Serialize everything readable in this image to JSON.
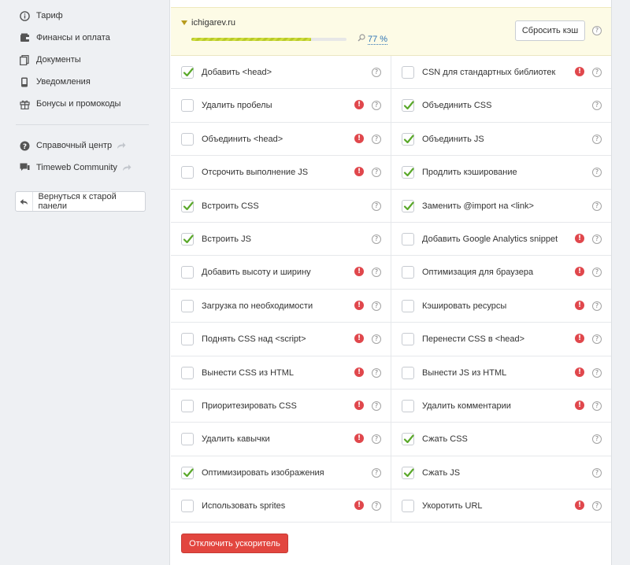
{
  "sidebar": {
    "items": [
      {
        "label": "Тариф",
        "icon": "info-icon"
      },
      {
        "label": "Финансы и оплата",
        "icon": "wallet-icon"
      },
      {
        "label": "Документы",
        "icon": "documents-icon"
      },
      {
        "label": "Уведомления",
        "icon": "phone-icon"
      },
      {
        "label": "Бонусы и промокоды",
        "icon": "gift-icon"
      }
    ],
    "links": [
      {
        "label": "Справочный центр",
        "icon": "help-circle-icon"
      },
      {
        "label": "Timeweb Community",
        "icon": "chat-icon"
      }
    ],
    "back_button": "Вернуться к старой панели"
  },
  "site": {
    "name": "ichigarev.ru",
    "progress_percent": 77,
    "progress_label": "77 %",
    "reset_button": "Сбросить кэш",
    "help_glyph": "?"
  },
  "options": [
    [
      {
        "label": "Добавить <head>",
        "checked": true,
        "warn": false
      },
      {
        "label": "CSN для стандартных библиотек",
        "checked": false,
        "warn": true
      }
    ],
    [
      {
        "label": "Удалить пробелы",
        "checked": false,
        "warn": true
      },
      {
        "label": "Объединить CSS",
        "checked": true,
        "warn": false
      }
    ],
    [
      {
        "label": "Объединить <head>",
        "checked": false,
        "warn": true
      },
      {
        "label": "Объединить JS",
        "checked": true,
        "warn": false
      }
    ],
    [
      {
        "label": "Отсрочить выполнение JS",
        "checked": false,
        "warn": true
      },
      {
        "label": "Продлить кэширование",
        "checked": true,
        "warn": false
      }
    ],
    [
      {
        "label": "Встроить CSS",
        "checked": true,
        "warn": false
      },
      {
        "label": "Заменить @import на <link>",
        "checked": true,
        "warn": false
      }
    ],
    [
      {
        "label": "Встроить JS",
        "checked": true,
        "warn": false
      },
      {
        "label": "Добавить Google Analytics snippet",
        "checked": false,
        "warn": true
      }
    ],
    [
      {
        "label": "Добавить высоту и ширину",
        "checked": false,
        "warn": true
      },
      {
        "label": "Оптимизация для браузера",
        "checked": false,
        "warn": true
      }
    ],
    [
      {
        "label": "Загрузка по необходимости",
        "checked": false,
        "warn": true
      },
      {
        "label": "Кэшировать ресурсы",
        "checked": false,
        "warn": true
      }
    ],
    [
      {
        "label": "Поднять CSS над <script>",
        "checked": false,
        "warn": true
      },
      {
        "label": "Перенести CSS в <head>",
        "checked": false,
        "warn": true
      }
    ],
    [
      {
        "label": "Вынести CSS из HTML",
        "checked": false,
        "warn": true
      },
      {
        "label": "Вынести JS из HTML",
        "checked": false,
        "warn": true
      }
    ],
    [
      {
        "label": "Приоритезировать CSS",
        "checked": false,
        "warn": true
      },
      {
        "label": "Удалить комментарии",
        "checked": false,
        "warn": true
      }
    ],
    [
      {
        "label": "Удалить кавычки",
        "checked": false,
        "warn": true
      },
      {
        "label": "Сжать CSS",
        "checked": true,
        "warn": false
      }
    ],
    [
      {
        "label": "Оптимизировать изображения",
        "checked": true,
        "warn": false
      },
      {
        "label": "Сжать JS",
        "checked": true,
        "warn": false
      }
    ],
    [
      {
        "label": "Использовать sprites",
        "checked": false,
        "warn": true
      },
      {
        "label": "Укоротить URL",
        "checked": false,
        "warn": true
      }
    ]
  ],
  "warn_glyph": "!",
  "disable_button": "Отключить ускоритель",
  "colors": {
    "accent_red": "#e2463f",
    "check_green": "#5aa82a",
    "link_blue": "#2e74b5",
    "header_bg": "#fdfbe6"
  }
}
